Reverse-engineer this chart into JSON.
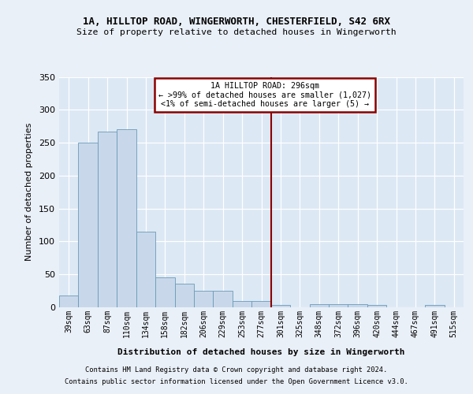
{
  "title1": "1A, HILLTOP ROAD, WINGERWORTH, CHESTERFIELD, S42 6RX",
  "title2": "Size of property relative to detached houses in Wingerworth",
  "xlabel": "Distribution of detached houses by size in Wingerworth",
  "ylabel": "Number of detached properties",
  "bins": [
    "39sqm",
    "63sqm",
    "87sqm",
    "110sqm",
    "134sqm",
    "158sqm",
    "182sqm",
    "206sqm",
    "229sqm",
    "253sqm",
    "277sqm",
    "301sqm",
    "325sqm",
    "348sqm",
    "372sqm",
    "396sqm",
    "420sqm",
    "444sqm",
    "467sqm",
    "491sqm",
    "515sqm"
  ],
  "values": [
    18,
    250,
    267,
    270,
    115,
    45,
    36,
    25,
    25,
    9,
    9,
    3,
    0,
    5,
    5,
    5,
    3,
    0,
    0,
    3,
    0
  ],
  "bar_color": "#c8d8ea",
  "bar_edge_color": "#6a9ab8",
  "vline_color": "#8b0000",
  "annotation_box_color": "#8b0000",
  "annotation_fill": "#ffffff",
  "background_color": "#dce8f4",
  "grid_color": "#ffffff",
  "fig_bg": "#eaf0f8",
  "ylim": [
    0,
    350
  ],
  "yticks": [
    0,
    50,
    100,
    150,
    200,
    250,
    300,
    350
  ],
  "footer1": "Contains HM Land Registry data © Crown copyright and database right 2024.",
  "footer2": "Contains public sector information licensed under the Open Government Licence v3.0."
}
